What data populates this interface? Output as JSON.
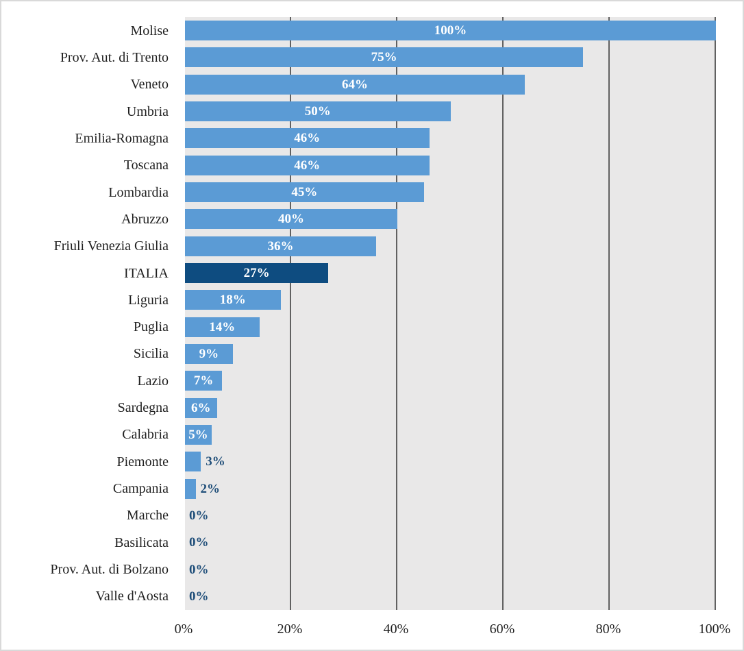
{
  "chart_data": {
    "type": "bar",
    "orientation": "horizontal",
    "title": "",
    "xlabel": "",
    "ylabel": "",
    "categories": [
      "Molise",
      "Prov. Aut. di Trento",
      "Veneto",
      "Umbria",
      "Emilia-Romagna",
      "Toscana",
      "Lombardia",
      "Abruzzo",
      "Friuli Venezia Giulia",
      "ITALIA",
      "Liguria",
      "Puglia",
      "Sicilia",
      "Lazio",
      "Sardegna",
      "Calabria",
      "Piemonte",
      "Campania",
      "Marche",
      "Basilicata",
      "Prov. Aut. di Bolzano",
      "Valle d'Aosta"
    ],
    "values": [
      100,
      75,
      64,
      50,
      46,
      46,
      45,
      40,
      36,
      27,
      18,
      14,
      9,
      7,
      6,
      5,
      3,
      2,
      0,
      0,
      0,
      0
    ],
    "data_labels": [
      "100%",
      "75%",
      "64%",
      "50%",
      "46%",
      "46%",
      "45%",
      "40%",
      "36%",
      "27%",
      "18%",
      "14%",
      "9%",
      "7%",
      "6%",
      "5%",
      "3%",
      "2%",
      "0%",
      "0%",
      "0%",
      "0%"
    ],
    "highlight_category": "ITALIA",
    "x_ticks": [
      "0%",
      "20%",
      "40%",
      "60%",
      "80%",
      "100%"
    ],
    "xlim": [
      0,
      100
    ],
    "grid": "vertical",
    "legend": "none",
    "colors": {
      "bar": "#5B9BD5",
      "highlight_bar": "#0E4C80",
      "label_inside": "#FFFFFF",
      "label_outside": "#1F4E79",
      "plot_background": "#E9E8E8",
      "gridline": "#616161",
      "axis_text": "#1F1F1F",
      "frame_border": "#D9D9D9"
    }
  }
}
